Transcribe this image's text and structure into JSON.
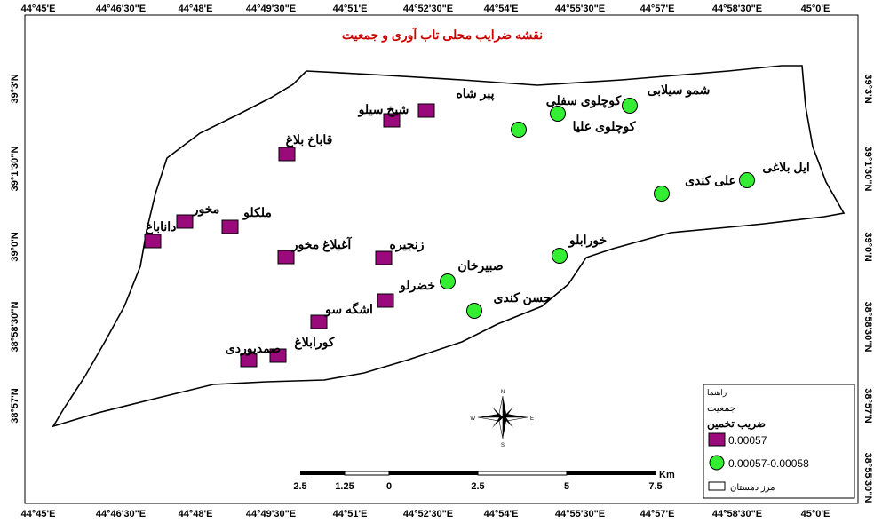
{
  "title": "نقشه ضرایب محلی تاب آوری و جمعیت",
  "colors": {
    "title": "#cc0000",
    "class1": "#9b0a7a",
    "class2": "#33ee33",
    "boundary": "#000000"
  },
  "lon_ticks": [
    "44°45'E",
    "44°46'30\"E",
    "44°48'E",
    "44°49'30\"E",
    "44°51'E",
    "44°52'30\"E",
    "44°54'E",
    "44°55'30\"E",
    "44°57'E",
    "44°58'30\"E",
    "45°0'E"
  ],
  "lat_ticks": [
    "39°3'N",
    "39°1'30\"N",
    "39°0'N",
    "38°58'30\"N",
    "38°57'N",
    "38°55'30\"N"
  ],
  "places": [
    {
      "name": "پیر شاه",
      "class": "0.00057"
    },
    {
      "name": "شیخ سیلو",
      "class": "0.00057"
    },
    {
      "name": "قاباخ بلاغ",
      "class": "0.00057"
    },
    {
      "name": "مخور",
      "class": "0.00057"
    },
    {
      "name": "داناباغ",
      "class": "0.00057"
    },
    {
      "name": "ملکلو",
      "class": "0.00057"
    },
    {
      "name": "آغبلاغ مخور",
      "class": "0.00057"
    },
    {
      "name": "زنجیره",
      "class": "0.00057"
    },
    {
      "name": "خضرلو",
      "class": "0.00057"
    },
    {
      "name": "اشگه سو",
      "class": "0.00057"
    },
    {
      "name": "کورابلاغ",
      "class": "0.00057"
    },
    {
      "name": "صمدیوردی",
      "class": "0.00057"
    },
    {
      "name": "شمو سیلابی",
      "class": "0.00057-0.00058"
    },
    {
      "name": "کوچلوی سفلی",
      "class": "0.00057-0.00058"
    },
    {
      "name": "کوچلوی علیا",
      "class": "0.00057-0.00058"
    },
    {
      "name": "ایل بلاغی",
      "class": "0.00057-0.00058"
    },
    {
      "name": "علی کندی",
      "class": "0.00057-0.00058"
    },
    {
      "name": "خورابلو",
      "class": "0.00057-0.00058"
    },
    {
      "name": "صبیرخان",
      "class": "0.00057-0.00058"
    },
    {
      "name": "حسن کندی",
      "class": "0.00057-0.00058"
    }
  ],
  "scale_bar": {
    "labels": [
      "2.5",
      "1.25",
      "0",
      "2.5",
      "5",
      "7.5"
    ],
    "unit": "Km"
  },
  "north_arrow": {
    "n": "N",
    "s": "S",
    "e": "E",
    "w": "W"
  },
  "legend": {
    "title": "راهنما",
    "layer": "جمعیت",
    "field": "ضریب تخمین",
    "class1": "0.00057",
    "class2": "0.00057-0.00058",
    "boundary": "مرز دهستان"
  }
}
